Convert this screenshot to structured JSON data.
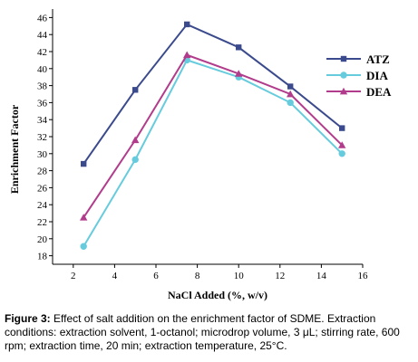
{
  "chart_data": {
    "type": "line",
    "title": "",
    "xlabel": "NaCl Added (%, w/v)",
    "ylabel": "Enrichment Factor",
    "xlim": [
      1,
      16
    ],
    "ylim": [
      17,
      47
    ],
    "xticks": [
      2,
      4,
      6,
      8,
      10,
      12,
      14,
      16
    ],
    "yticks": [
      18,
      20,
      22,
      24,
      26,
      28,
      30,
      32,
      34,
      36,
      38,
      40,
      42,
      44,
      46
    ],
    "x": [
      2.5,
      5,
      7.5,
      10,
      12.5,
      15
    ],
    "grid": false,
    "legend_position": "right",
    "series": [
      {
        "name": "ATZ",
        "color": "#3A4A8C",
        "marker": "square",
        "values": [
          28.8,
          37.5,
          45.2,
          42.5,
          37.9,
          33.0
        ]
      },
      {
        "name": "DIA",
        "color": "#66CCDD",
        "marker": "circle",
        "values": [
          19.1,
          29.3,
          41.0,
          39.0,
          36.0,
          30.0
        ]
      },
      {
        "name": "DEA",
        "color": "#B23C8C",
        "marker": "triangle",
        "values": [
          22.5,
          31.6,
          41.6,
          39.4,
          37.0,
          31.0
        ]
      }
    ]
  },
  "caption": {
    "label": "Figure 3:",
    "text": " Effect of salt addition on the enrichment factor of SDME. Extraction conditions: extraction solvent, 1-octanol; microdrop volume, 3 μL; stirring rate, 600 rpm; extraction time, 20 min; extraction temperature, 25°C."
  }
}
